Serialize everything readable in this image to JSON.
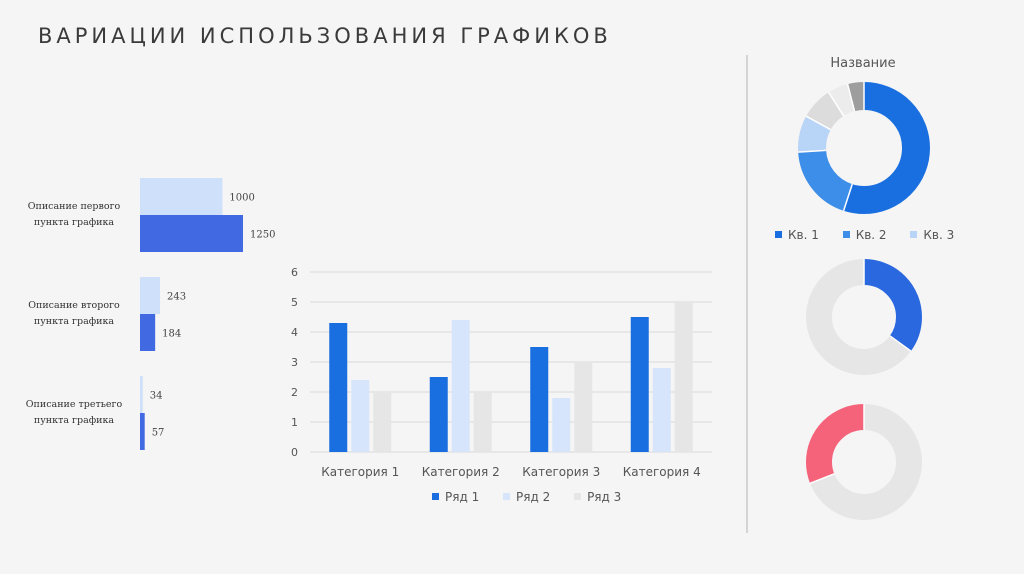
{
  "page": {
    "title": "ВАРИАЦИИ ИСПОЛЬЗОВАНИЯ ГРАФИКОВ"
  },
  "chart_data": [
    {
      "type": "bar",
      "orientation": "horizontal",
      "categories": [
        "Описание первого пункта графика",
        "Описание второго пункта графика",
        "Описание третьего пункта графика"
      ],
      "series": [
        {
          "values": [
            1000,
            243,
            34
          ],
          "color": "#cfe0fb"
        },
        {
          "values": [
            1250,
            184,
            57
          ],
          "color": "#4169e1"
        }
      ],
      "data_labels": true
    },
    {
      "type": "bar",
      "categories": [
        "Категория 1",
        "Категория 2",
        "Категория 3",
        "Категория 4"
      ],
      "series": [
        {
          "name": "Ряд 1",
          "values": [
            4.3,
            2.5,
            3.5,
            4.5
          ],
          "color": "#1a6fe0"
        },
        {
          "name": "Ряд 2",
          "values": [
            2.4,
            4.4,
            1.8,
            2.8
          ],
          "color": "#d6e5fb"
        },
        {
          "name": "Ряд 3",
          "values": [
            2,
            2,
            3,
            5
          ],
          "color": "#e6e6e6"
        }
      ],
      "yticks": [
        "0",
        "1",
        "2",
        "3",
        "4",
        "5",
        "6"
      ],
      "ylim": [
        0,
        6
      ],
      "grid": true,
      "legend": "bottom"
    },
    {
      "type": "pie",
      "variant": "donut",
      "title": "Название",
      "slices": [
        {
          "value": 55,
          "color": "#1a6fe0"
        },
        {
          "value": 19,
          "color": "#3d8ee8"
        },
        {
          "value": 9,
          "color": "#b8d4f6"
        },
        {
          "value": 8,
          "color": "#dcdcdc"
        },
        {
          "value": 5,
          "color": "#ececec"
        },
        {
          "value": 4,
          "color": "#9e9e9e"
        }
      ],
      "legend": [
        {
          "label": "Кв. 1",
          "color": "#1a6fe0"
        },
        {
          "label": "Кв. 2",
          "color": "#3d8ee8"
        },
        {
          "label": "Кв. 3",
          "color": "#b8d4f6"
        }
      ],
      "legend_position": "bottom"
    },
    {
      "type": "pie",
      "variant": "donut",
      "slices": [
        {
          "value": 35,
          "color": "#2a68e0"
        },
        {
          "value": 65,
          "color": "#e6e6e6"
        }
      ]
    },
    {
      "type": "pie",
      "variant": "donut",
      "slices": [
        {
          "value": 69,
          "color": "#e6e6e6"
        },
        {
          "value": 31,
          "color": "#f5637a"
        }
      ]
    }
  ]
}
